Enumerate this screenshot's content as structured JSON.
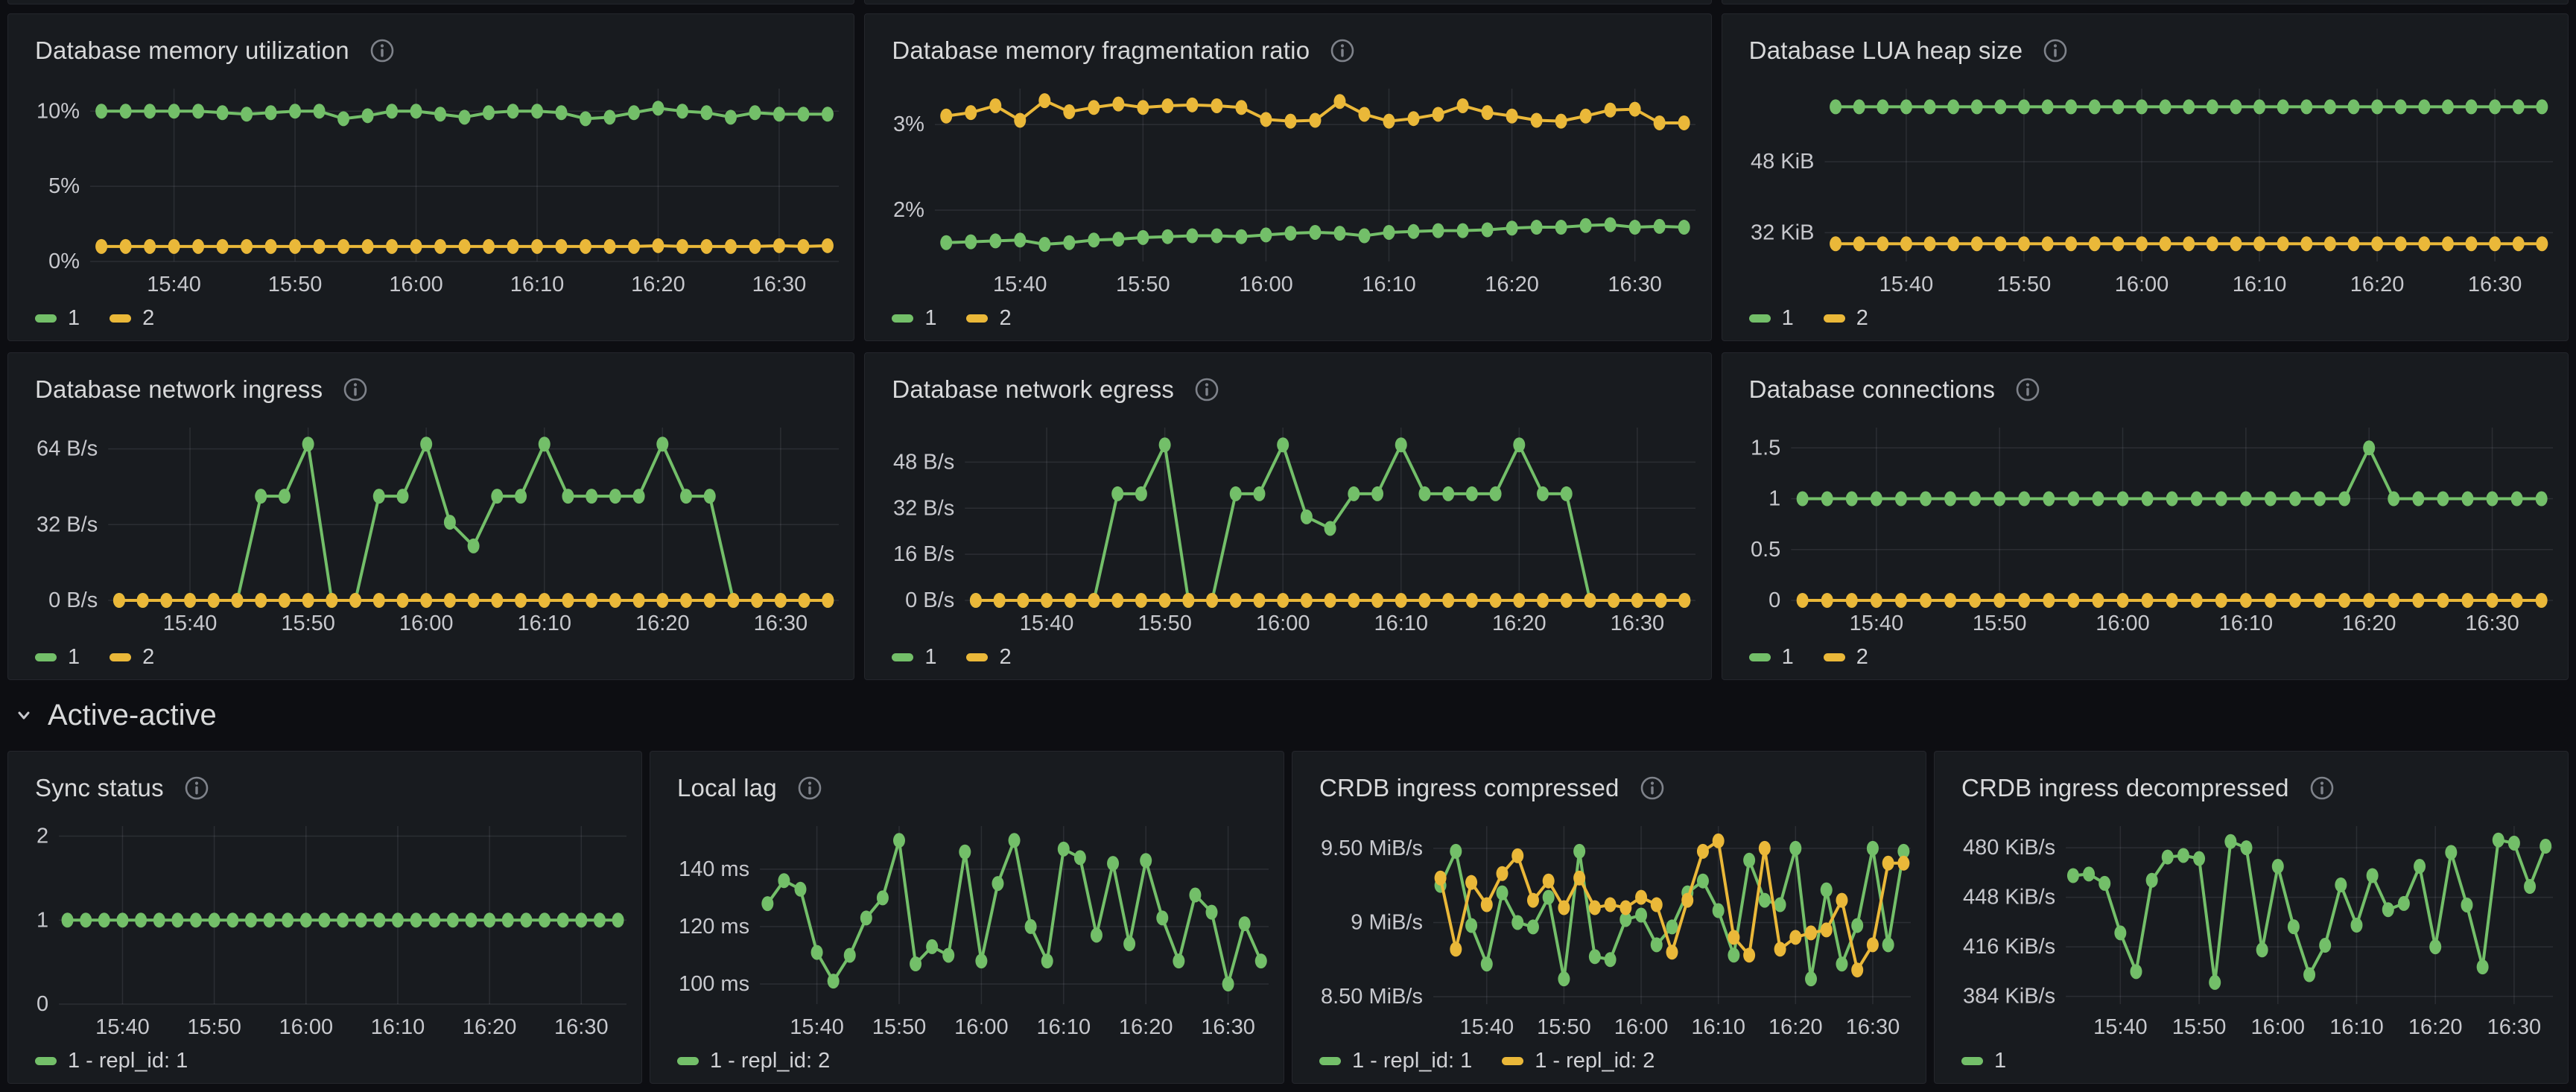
{
  "section": {
    "title": "Active-active"
  },
  "colors": {
    "green": "#73bf69",
    "yellow": "#eab839"
  },
  "theme": {
    "page_bg": "#0d0e12",
    "panel_bg": "#181b1f",
    "panel_border": "#24262c",
    "title_text": "#d8d9da",
    "tick_text": "#c7c8cd",
    "grid": "rgba(204,204,220,0.11)"
  },
  "chart_data": [
    {
      "type": "line",
      "title": "Database memory utilization",
      "x_start": "15:34",
      "x_interval_min": 2,
      "x_ticks": [
        {
          "label": "15:40",
          "i": 3
        },
        {
          "label": "15:50",
          "i": 8
        },
        {
          "label": "16:00",
          "i": 13
        },
        {
          "label": "16:10",
          "i": 18
        },
        {
          "label": "16:20",
          "i": 23
        },
        {
          "label": "16:30",
          "i": 28
        }
      ],
      "y_ticks": [
        {
          "label": "10%",
          "v": 10
        },
        {
          "label": "5%",
          "v": 5
        },
        {
          "label": "0%",
          "v": 0
        }
      ],
      "ylim": [
        0,
        11.5
      ],
      "legend_position": "bottom",
      "series": [
        {
          "name": "1",
          "color": "green",
          "values": [
            10,
            10,
            10,
            10,
            10,
            9.9,
            9.8,
            9.9,
            10,
            10,
            9.5,
            9.7,
            10,
            10,
            9.8,
            9.6,
            9.9,
            10,
            10,
            9.9,
            9.5,
            9.6,
            9.9,
            10.2,
            10,
            9.9,
            9.6,
            9.9,
            9.8,
            9.8,
            9.8
          ]
        },
        {
          "name": "2",
          "color": "yellow",
          "values": [
            1,
            1,
            1,
            1,
            1,
            1,
            1,
            1,
            1,
            1,
            1,
            1,
            1,
            1,
            1,
            1,
            1,
            1,
            1,
            1,
            1,
            1,
            1,
            1.05,
            1,
            1,
            1,
            1,
            1.05,
            1,
            1.05
          ]
        }
      ]
    },
    {
      "type": "line",
      "title": "Database memory fragmentation ratio",
      "x_start": "15:34",
      "x_interval_min": 2,
      "x_ticks": [
        {
          "label": "15:40",
          "i": 3
        },
        {
          "label": "15:50",
          "i": 8
        },
        {
          "label": "16:00",
          "i": 13
        },
        {
          "label": "16:10",
          "i": 18
        },
        {
          "label": "16:20",
          "i": 23
        },
        {
          "label": "16:30",
          "i": 28
        }
      ],
      "y_ticks": [
        {
          "label": "3%",
          "v": 3
        },
        {
          "label": "2%",
          "v": 2
        }
      ],
      "ylim": [
        1.4,
        3.42
      ],
      "legend_position": "bottom",
      "series": [
        {
          "name": "1",
          "color": "green",
          "values": [
            1.62,
            1.63,
            1.64,
            1.65,
            1.6,
            1.62,
            1.65,
            1.66,
            1.68,
            1.69,
            1.7,
            1.7,
            1.69,
            1.71,
            1.73,
            1.74,
            1.73,
            1.7,
            1.74,
            1.75,
            1.76,
            1.76,
            1.77,
            1.79,
            1.8,
            1.8,
            1.82,
            1.83,
            1.8,
            1.81,
            1.8
          ]
        },
        {
          "name": "2",
          "color": "yellow",
          "values": [
            3.1,
            3.14,
            3.22,
            3.05,
            3.28,
            3.15,
            3.2,
            3.24,
            3.2,
            3.22,
            3.23,
            3.22,
            3.2,
            3.06,
            3.04,
            3.05,
            3.27,
            3.12,
            3.04,
            3.07,
            3.12,
            3.22,
            3.14,
            3.1,
            3.05,
            3.04,
            3.1,
            3.17,
            3.18,
            3.02,
            3.02
          ]
        }
      ]
    },
    {
      "type": "line",
      "title": "Database LUA heap size",
      "x_start": "15:34",
      "x_interval_min": 2,
      "x_ticks": [
        {
          "label": "15:40",
          "i": 3
        },
        {
          "label": "15:50",
          "i": 8
        },
        {
          "label": "16:00",
          "i": 13
        },
        {
          "label": "16:10",
          "i": 18
        },
        {
          "label": "16:20",
          "i": 23
        },
        {
          "label": "16:30",
          "i": 28
        }
      ],
      "y_ticks": [
        {
          "label": "48 KiB",
          "v": 48
        },
        {
          "label": "32 KiB",
          "v": 32
        }
      ],
      "ylim": [
        25.5,
        64.5
      ],
      "legend_position": "bottom",
      "series": [
        {
          "name": "1",
          "color": "green",
          "values": [
            60.4,
            60.4,
            60.4,
            60.4,
            60.4,
            60.4,
            60.4,
            60.4,
            60.4,
            60.4,
            60.4,
            60.4,
            60.4,
            60.4,
            60.4,
            60.4,
            60.4,
            60.4,
            60.4,
            60.4,
            60.4,
            60.4,
            60.4,
            60.4,
            60.4,
            60.4,
            60.4,
            60.4,
            60.4,
            60.4,
            60.4
          ]
        },
        {
          "name": "2",
          "color": "yellow",
          "values": [
            29.5,
            29.5,
            29.5,
            29.5,
            29.5,
            29.5,
            29.5,
            29.5,
            29.5,
            29.5,
            29.5,
            29.5,
            29.5,
            29.5,
            29.5,
            29.5,
            29.5,
            29.5,
            29.5,
            29.5,
            29.5,
            29.5,
            29.5,
            29.5,
            29.5,
            29.5,
            29.5,
            29.5,
            29.5,
            29.5,
            29.5
          ]
        }
      ]
    },
    {
      "type": "line",
      "title": "Database network ingress",
      "x_start": "15:34",
      "x_interval_min": 2,
      "x_ticks": [
        {
          "label": "15:40",
          "i": 3
        },
        {
          "label": "15:50",
          "i": 8
        },
        {
          "label": "16:00",
          "i": 13
        },
        {
          "label": "16:10",
          "i": 18
        },
        {
          "label": "16:20",
          "i": 23
        },
        {
          "label": "16:30",
          "i": 28
        }
      ],
      "y_ticks": [
        {
          "label": "64 B/s",
          "v": 64
        },
        {
          "label": "32 B/s",
          "v": 32
        },
        {
          "label": "0 B/s",
          "v": 0
        }
      ],
      "ylim": [
        0,
        73
      ],
      "legend_position": "bottom",
      "series": [
        {
          "name": "1",
          "color": "green",
          "values": [
            0,
            0,
            0,
            0,
            0,
            0,
            44,
            44,
            66,
            0,
            0,
            44,
            44,
            66,
            33,
            23,
            44,
            44,
            66,
            44,
            44,
            44,
            44,
            66,
            44,
            44,
            0,
            0,
            0,
            0,
            0
          ]
        },
        {
          "name": "2",
          "color": "yellow",
          "values": [
            0,
            0,
            0,
            0,
            0,
            0,
            0,
            0,
            0,
            0,
            0,
            0,
            0,
            0,
            0,
            0,
            0,
            0,
            0,
            0,
            0,
            0,
            0,
            0,
            0,
            0,
            0,
            0,
            0,
            0,
            0
          ]
        }
      ]
    },
    {
      "type": "line",
      "title": "Database network egress",
      "x_start": "15:34",
      "x_interval_min": 2,
      "x_ticks": [
        {
          "label": "15:40",
          "i": 3
        },
        {
          "label": "15:50",
          "i": 8
        },
        {
          "label": "16:00",
          "i": 13
        },
        {
          "label": "16:10",
          "i": 18
        },
        {
          "label": "16:20",
          "i": 23
        },
        {
          "label": "16:30",
          "i": 28
        }
      ],
      "y_ticks": [
        {
          "label": "48 B/s",
          "v": 48
        },
        {
          "label": "32 B/s",
          "v": 32
        },
        {
          "label": "16 B/s",
          "v": 16
        },
        {
          "label": "0 B/s",
          "v": 0
        }
      ],
      "ylim": [
        0,
        60
      ],
      "legend_position": "bottom",
      "series": [
        {
          "name": "1",
          "color": "green",
          "values": [
            0,
            0,
            0,
            0,
            0,
            0,
            37,
            37,
            54,
            0,
            0,
            37,
            37,
            54,
            29,
            25,
            37,
            37,
            54,
            37,
            37,
            37,
            37,
            54,
            37,
            37,
            0,
            0,
            0,
            0,
            0
          ]
        },
        {
          "name": "2",
          "color": "yellow",
          "values": [
            0,
            0,
            0,
            0,
            0,
            0,
            0,
            0,
            0,
            0,
            0,
            0,
            0,
            0,
            0,
            0,
            0,
            0,
            0,
            0,
            0,
            0,
            0,
            0,
            0,
            0,
            0,
            0,
            0,
            0,
            0
          ]
        }
      ]
    },
    {
      "type": "line",
      "title": "Database connections",
      "x_start": "15:34",
      "x_interval_min": 2,
      "x_ticks": [
        {
          "label": "15:40",
          "i": 3
        },
        {
          "label": "15:50",
          "i": 8
        },
        {
          "label": "16:00",
          "i": 13
        },
        {
          "label": "16:10",
          "i": 18
        },
        {
          "label": "16:20",
          "i": 23
        },
        {
          "label": "16:30",
          "i": 28
        }
      ],
      "y_ticks": [
        {
          "label": "1.5",
          "v": 1.5
        },
        {
          "label": "1",
          "v": 1
        },
        {
          "label": "0.5",
          "v": 0.5
        },
        {
          "label": "0",
          "v": 0
        }
      ],
      "ylim": [
        0,
        1.7
      ],
      "legend_position": "bottom",
      "series": [
        {
          "name": "1",
          "color": "green",
          "values": [
            1,
            1,
            1,
            1,
            1,
            1,
            1,
            1,
            1,
            1,
            1,
            1,
            1,
            1,
            1,
            1,
            1,
            1,
            1,
            1,
            1,
            1,
            1,
            1.5,
            1,
            1,
            1,
            1,
            1,
            1,
            1
          ]
        },
        {
          "name": "2",
          "color": "yellow",
          "values": [
            0,
            0,
            0,
            0,
            0,
            0,
            0,
            0,
            0,
            0,
            0,
            0,
            0,
            0,
            0,
            0,
            0,
            0,
            0,
            0,
            0,
            0,
            0,
            0,
            0,
            0,
            0,
            0,
            0,
            0,
            0
          ]
        }
      ]
    },
    {
      "type": "line",
      "title": "Sync status",
      "x_start": "15:34",
      "x_interval_min": 2,
      "x_ticks": [
        {
          "label": "15:40",
          "i": 3
        },
        {
          "label": "15:50",
          "i": 8
        },
        {
          "label": "16:00",
          "i": 13
        },
        {
          "label": "16:10",
          "i": 18
        },
        {
          "label": "16:20",
          "i": 23
        },
        {
          "label": "16:30",
          "i": 28
        }
      ],
      "y_ticks": [
        {
          "label": "2",
          "v": 2
        },
        {
          "label": "1",
          "v": 1
        },
        {
          "label": "0",
          "v": 0
        }
      ],
      "ylim": [
        0,
        2.12
      ],
      "legend_position": "bottom",
      "series": [
        {
          "name": "1 - repl_id: 1",
          "color": "green",
          "values": [
            1,
            1,
            1,
            1,
            1,
            1,
            1,
            1,
            1,
            1,
            1,
            1,
            1,
            1,
            1,
            1,
            1,
            1,
            1,
            1,
            1,
            1,
            1,
            1,
            1,
            1,
            1,
            1,
            1,
            1,
            1
          ]
        }
      ]
    },
    {
      "type": "line",
      "title": "Local lag",
      "x_start": "15:34",
      "x_interval_min": 2,
      "x_ticks": [
        {
          "label": "15:40",
          "i": 3
        },
        {
          "label": "15:50",
          "i": 8
        },
        {
          "label": "16:00",
          "i": 13
        },
        {
          "label": "16:10",
          "i": 18
        },
        {
          "label": "16:20",
          "i": 23
        },
        {
          "label": "16:30",
          "i": 28
        }
      ],
      "y_ticks": [
        {
          "label": "140 ms",
          "v": 140
        },
        {
          "label": "120 ms",
          "v": 120
        },
        {
          "label": "100 ms",
          "v": 100
        }
      ],
      "ylim": [
        93,
        155
      ],
      "legend_position": "bottom",
      "series": [
        {
          "name": "1 - repl_id: 2",
          "color": "green",
          "values": [
            128,
            136,
            133,
            111,
            101,
            110,
            123,
            130,
            150,
            107,
            113,
            110,
            146,
            108,
            135,
            150,
            120,
            108,
            147,
            144,
            117,
            142,
            114,
            143,
            123,
            108,
            131,
            125,
            100,
            121,
            108
          ]
        }
      ]
    },
    {
      "type": "line",
      "title": "CRDB ingress compressed",
      "x_start": "15:34",
      "x_interval_min": 2,
      "x_ticks": [
        {
          "label": "15:40",
          "i": 3
        },
        {
          "label": "15:50",
          "i": 8
        },
        {
          "label": "16:00",
          "i": 13
        },
        {
          "label": "16:10",
          "i": 18
        },
        {
          "label": "16:20",
          "i": 23
        },
        {
          "label": "16:30",
          "i": 28
        }
      ],
      "y_ticks": [
        {
          "label": "9.50 MiB/s",
          "v": 9.5
        },
        {
          "label": "9 MiB/s",
          "v": 9
        },
        {
          "label": "8.50 MiB/s",
          "v": 8.5
        }
      ],
      "ylim": [
        8.45,
        9.65
      ],
      "legend_position": "bottom",
      "series": [
        {
          "name": "1 - repl_id: 1",
          "color": "green",
          "values": [
            9.25,
            9.48,
            8.98,
            8.72,
            9.2,
            9.0,
            8.97,
            9.17,
            8.62,
            9.48,
            8.77,
            8.75,
            9.02,
            9.05,
            8.85,
            8.97,
            9.2,
            9.28,
            9.08,
            8.78,
            9.42,
            9.15,
            9.12,
            9.5,
            8.62,
            9.22,
            8.72,
            8.98,
            9.5,
            8.85,
            9.48
          ]
        },
        {
          "name": "1 - repl_id: 2",
          "color": "yellow",
          "values": [
            9.3,
            8.82,
            9.27,
            9.12,
            9.33,
            9.45,
            9.15,
            9.28,
            9.1,
            9.3,
            9.1,
            9.12,
            9.1,
            9.17,
            9.12,
            8.8,
            9.15,
            9.48,
            9.55,
            8.9,
            8.78,
            9.5,
            8.82,
            8.9,
            8.93,
            8.95,
            9.15,
            8.68,
            8.85,
            9.4,
            9.4
          ]
        }
      ]
    },
    {
      "type": "line",
      "title": "CRDB ingress decompressed",
      "x_start": "15:34",
      "x_interval_min": 2,
      "x_ticks": [
        {
          "label": "15:40",
          "i": 3
        },
        {
          "label": "15:50",
          "i": 8
        },
        {
          "label": "16:00",
          "i": 13
        },
        {
          "label": "16:10",
          "i": 18
        },
        {
          "label": "16:20",
          "i": 23
        },
        {
          "label": "16:30",
          "i": 28
        }
      ],
      "y_ticks": [
        {
          "label": "480 KiB/s",
          "v": 480
        },
        {
          "label": "448 KiB/s",
          "v": 448
        },
        {
          "label": "416 KiB/s",
          "v": 416
        },
        {
          "label": "384 KiB/s",
          "v": 384
        }
      ],
      "ylim": [
        379,
        494
      ],
      "legend_position": "bottom",
      "series": [
        {
          "name": "1",
          "color": "green",
          "values": [
            462,
            463,
            457,
            425,
            400,
            459,
            474,
            475,
            473,
            393,
            484,
            480,
            414,
            468,
            429,
            398,
            417,
            456,
            430,
            462,
            440,
            444,
            468,
            416,
            477,
            443,
            403,
            485,
            483,
            455,
            481
          ]
        }
      ]
    }
  ]
}
